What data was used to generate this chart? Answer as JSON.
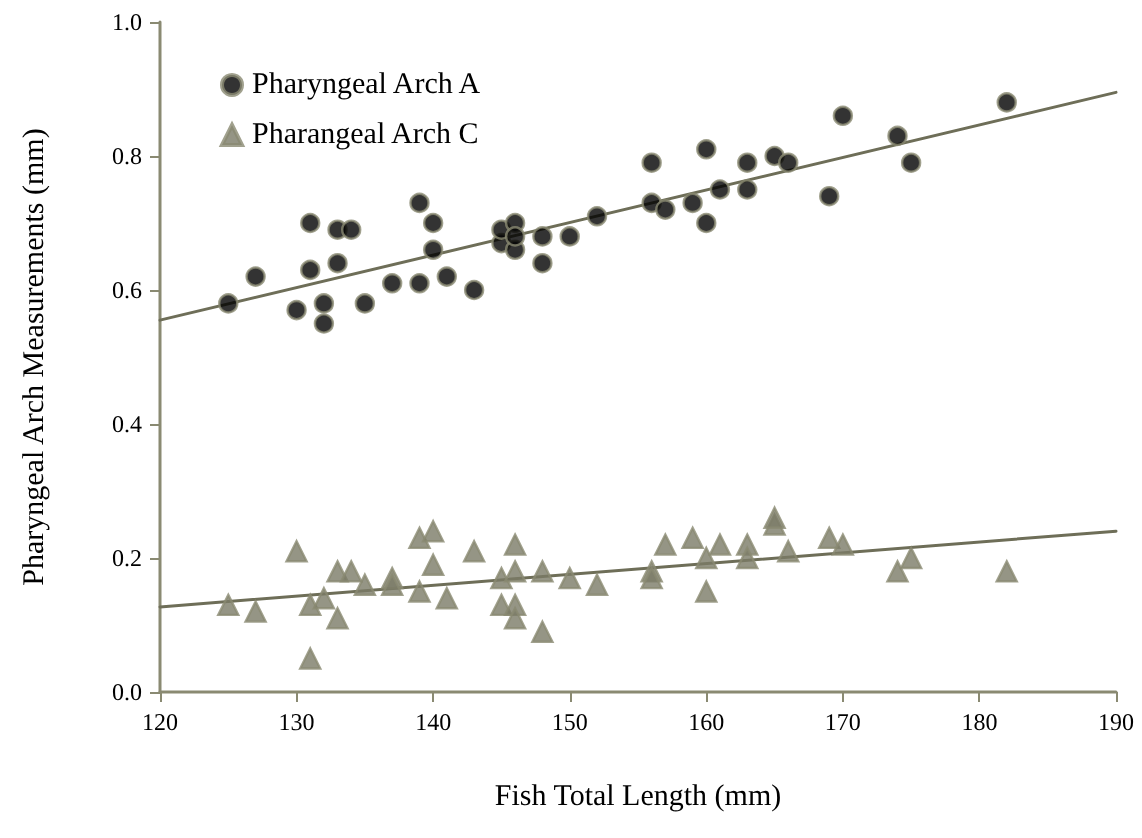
{
  "chart_data": {
    "type": "scatter",
    "xlabel": "Fish Total Length (mm)",
    "ylabel": "Pharyngeal Arch Measurements (mm)",
    "xlim": [
      120,
      190
    ],
    "xticks": [
      120,
      130,
      140,
      150,
      160,
      170,
      180,
      190
    ],
    "ylim": [
      0,
      1
    ],
    "yticks": [
      {
        "value": 0,
        "label": "0.0"
      },
      0.2,
      0.4,
      0.6,
      0.8,
      {
        "value": 1,
        "label": "1.0"
      }
    ],
    "grid": false,
    "legend": "top left",
    "series": [
      {
        "name": "Pharyngeal Arch A",
        "color": "#000000",
        "marker": "circle",
        "x": [
          125,
          127,
          130,
          131,
          131,
          132,
          132,
          133,
          133,
          134,
          135,
          137,
          139,
          139,
          140,
          140,
          141,
          143,
          145,
          145,
          146,
          146,
          146,
          148,
          148,
          150,
          152,
          156,
          156,
          157,
          159,
          160,
          160,
          161,
          163,
          163,
          165,
          166,
          169,
          170,
          174,
          175,
          182
        ],
        "values": [
          0.58,
          0.62,
          0.57,
          0.63,
          0.7,
          0.58,
          0.55,
          0.64,
          0.69,
          0.69,
          0.58,
          0.61,
          0.61,
          0.73,
          0.7,
          0.66,
          0.62,
          0.6,
          0.67,
          0.69,
          0.66,
          0.7,
          0.68,
          0.64,
          0.68,
          0.68,
          0.71,
          0.73,
          0.79,
          0.72,
          0.73,
          0.81,
          0.7,
          0.75,
          0.79,
          0.75,
          0.8,
          0.79,
          0.74,
          0.86,
          0.83,
          0.79,
          0.88
        ]
      },
      {
        "name": "Pharangeal Arch C",
        "color": "#7a7a66",
        "marker": "triangle",
        "x": [
          125,
          127,
          130,
          131,
          131,
          132,
          133,
          133,
          134,
          135,
          137,
          137,
          139,
          139,
          140,
          140,
          141,
          143,
          145,
          145,
          146,
          146,
          146,
          146,
          148,
          148,
          150,
          152,
          156,
          156,
          157,
          159,
          160,
          160,
          161,
          163,
          163,
          165,
          165,
          166,
          169,
          170,
          174,
          175,
          182
        ],
        "values": [
          0.13,
          0.12,
          0.21,
          0.05,
          0.13,
          0.14,
          0.18,
          0.11,
          0.18,
          0.16,
          0.17,
          0.16,
          0.15,
          0.23,
          0.24,
          0.19,
          0.14,
          0.21,
          0.17,
          0.13,
          0.22,
          0.18,
          0.13,
          0.11,
          0.18,
          0.09,
          0.17,
          0.16,
          0.18,
          0.17,
          0.22,
          0.23,
          0.2,
          0.15,
          0.22,
          0.22,
          0.2,
          0.25,
          0.26,
          0.21,
          0.23,
          0.22,
          0.18,
          0.2,
          0.18
        ]
      },
      {
        "type": "line",
        "color": "#6e6e58",
        "marker": "none",
        "x": [
          120,
          190
        ],
        "values": [
          0.555,
          0.895
        ]
      },
      {
        "type": "line",
        "color": "#6e6e58",
        "marker": "none",
        "x": [
          120,
          190
        ],
        "values": [
          0.127,
          0.24
        ]
      }
    ]
  }
}
